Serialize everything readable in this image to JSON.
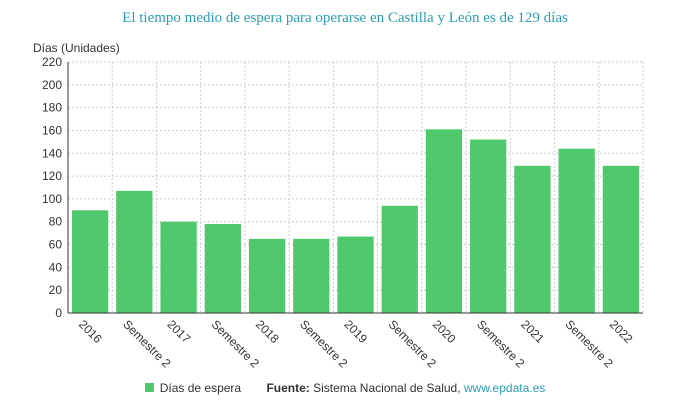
{
  "chart_data": {
    "type": "bar",
    "title": "El tiempo medio de espera para operarse en Castilla y León es de 129 días",
    "y_label": "Días (Unidades)",
    "categories": [
      "2016",
      "Semestre 2",
      "2017",
      "Semestre 2",
      "2018",
      "Semestre 2",
      "2019",
      "Semestre 2",
      "2020",
      "Semestre 2",
      "2021",
      "Semestre 2",
      "2022"
    ],
    "series": [
      {
        "name": "Días de espera",
        "color": "#4fc96b",
        "values": [
          90,
          107,
          80,
          78,
          65,
          65,
          67,
          94,
          161,
          152,
          129,
          144,
          129
        ]
      }
    ],
    "ylim": [
      0,
      220
    ],
    "yticks": [
      0,
      20,
      40,
      60,
      80,
      100,
      120,
      140,
      160,
      180,
      200,
      220
    ],
    "grid": true,
    "source": {
      "label": "Fuente:",
      "text": "Sistema Nacional de Salud,",
      "link": "www.epdata.es"
    }
  }
}
